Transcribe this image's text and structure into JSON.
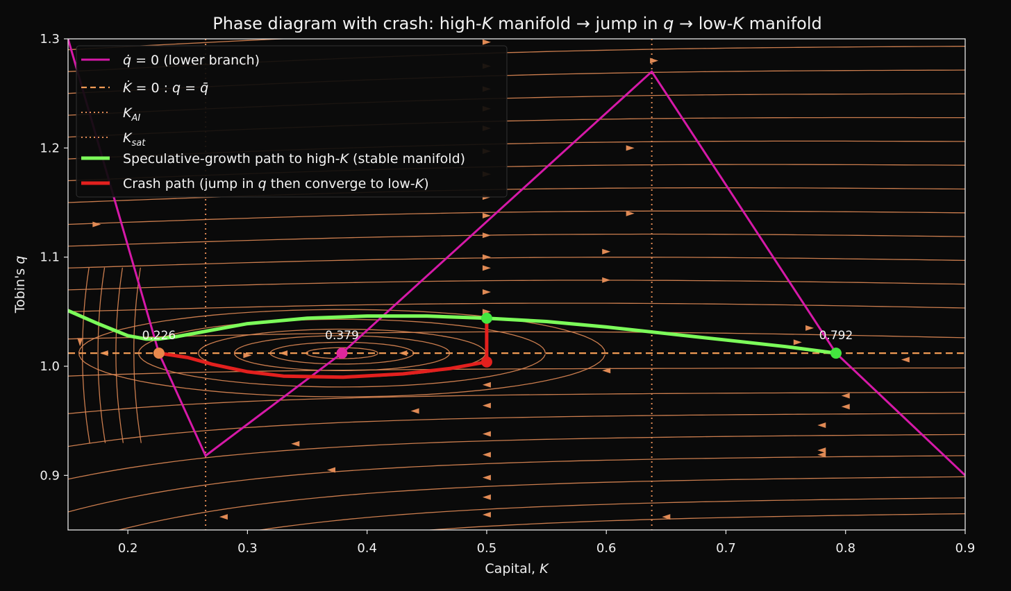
{
  "chart_data": {
    "type": "line",
    "title": {
      "prefix": "Phase diagram with crash: high-",
      "k1": "K",
      "mid1": " manifold ",
      "arrow1": "→",
      "mid2": " jump in ",
      "qsym": "q",
      "arrow2": "→",
      "mid3": " low-",
      "k2": "K",
      "suffix": " manifold"
    },
    "xlabel": {
      "text": "Capital, ",
      "sym": "K"
    },
    "ylabel": {
      "text": "Tobin's ",
      "sym": "q"
    },
    "xlim": [
      0.15,
      0.9
    ],
    "ylim": [
      0.85,
      1.3
    ],
    "x_ticks": [
      {
        "v": 0.2,
        "label": "0.2"
      },
      {
        "v": 0.3,
        "label": "0.3"
      },
      {
        "v": 0.4,
        "label": "0.4"
      },
      {
        "v": 0.5,
        "label": "0.5"
      },
      {
        "v": 0.6,
        "label": "0.6"
      },
      {
        "v": 0.7,
        "label": "0.7"
      },
      {
        "v": 0.8,
        "label": "0.8"
      },
      {
        "v": 0.9,
        "label": "0.9"
      }
    ],
    "y_ticks": [
      {
        "v": 0.9,
        "label": "0.9"
      },
      {
        "v": 1.0,
        "label": "1.0"
      },
      {
        "v": 1.1,
        "label": "1.1"
      },
      {
        "v": 1.2,
        "label": "1.2"
      },
      {
        "v": 1.3,
        "label": "1.3"
      }
    ],
    "grid": false,
    "legend_position": "top-left",
    "colors": {
      "background": "#0a0a0a",
      "stream": "#e08a55",
      "qdot": "#d619a8",
      "kdot": "#f09a55",
      "ksat_line": "#e08a55",
      "green": "#7cfc5a",
      "red": "#e3201e",
      "green_dot": "#43e63f",
      "orange_dot": "#e8884c",
      "magenta_dot": "#e0279c"
    },
    "legend": [
      {
        "key": "qdot",
        "style": "solid-magenta",
        "parts": [
          [
            "q̇",
            "i"
          ],
          [
            " = 0 (lower branch)",
            "n"
          ]
        ]
      },
      {
        "key": "kdot",
        "style": "dashed-orange",
        "parts": [
          [
            "K̇",
            "i"
          ],
          [
            " = 0 : ",
            "n"
          ],
          [
            "q",
            "i"
          ],
          [
            " = ",
            "n"
          ],
          [
            "q̄",
            "i"
          ]
        ]
      },
      {
        "key": "kai",
        "style": "dotted-orange",
        "parts": [
          [
            "K",
            "i"
          ],
          [
            "AI",
            "sub"
          ]
        ]
      },
      {
        "key": "ksat",
        "style": "dotted-orange",
        "parts": [
          [
            "K",
            "i"
          ],
          [
            "sat",
            "sub"
          ]
        ]
      },
      {
        "key": "green",
        "style": "thick-green",
        "parts": [
          [
            "Speculative-growth path to high-",
            "n"
          ],
          [
            "K",
            "i"
          ],
          [
            " (stable manifold)",
            "n"
          ]
        ]
      },
      {
        "key": "red",
        "style": "thick-red",
        "parts": [
          [
            "Crash path (jump in ",
            "n"
          ],
          [
            "q",
            "i"
          ],
          [
            " then converge to low-",
            "n"
          ],
          [
            "K",
            "i"
          ],
          [
            ")",
            "n"
          ]
        ]
      }
    ],
    "series": {
      "qdot_zero": [
        [
          0.15,
          1.3
        ],
        [
          0.226,
          1.012
        ],
        [
          0.265,
          0.918
        ],
        [
          0.379,
          1.012
        ],
        [
          0.638,
          1.27
        ],
        [
          0.792,
          1.012
        ],
        [
          0.9,
          0.9
        ]
      ],
      "kdot_zero_q": 1.012,
      "k_ai": 0.265,
      "k_sat": 0.638,
      "green_path": [
        [
          0.15,
          1.051
        ],
        [
          0.175,
          1.039
        ],
        [
          0.2,
          1.028
        ],
        [
          0.215,
          1.025
        ],
        [
          0.226,
          1.025
        ],
        [
          0.24,
          1.027
        ],
        [
          0.26,
          1.031
        ],
        [
          0.3,
          1.039
        ],
        [
          0.35,
          1.044
        ],
        [
          0.4,
          1.046
        ],
        [
          0.45,
          1.046
        ],
        [
          0.5,
          1.044
        ],
        [
          0.55,
          1.041
        ],
        [
          0.6,
          1.036
        ],
        [
          0.65,
          1.03
        ],
        [
          0.7,
          1.024
        ],
        [
          0.75,
          1.018
        ],
        [
          0.792,
          1.012
        ]
      ],
      "crash_jump": [
        [
          0.5,
          1.044
        ],
        [
          0.5,
          1.004
        ]
      ],
      "red_path": [
        [
          0.5,
          1.004
        ],
        [
          0.47,
          0.998
        ],
        [
          0.43,
          0.993
        ],
        [
          0.38,
          0.99
        ],
        [
          0.33,
          0.991
        ],
        [
          0.3,
          0.995
        ],
        [
          0.27,
          1.002
        ],
        [
          0.25,
          1.008
        ],
        [
          0.226,
          1.012
        ]
      ]
    },
    "points": [
      {
        "x": 0.226,
        "y": 1.012,
        "color": "#e8884c",
        "label": "0.226"
      },
      {
        "x": 0.379,
        "y": 1.012,
        "color": "#e0279c",
        "label": "0.379"
      },
      {
        "x": 0.792,
        "y": 1.012,
        "color": "#43e63f",
        "label": "0.792"
      },
      {
        "x": 0.5,
        "y": 1.044,
        "color": "#43e63f",
        "label": ""
      },
      {
        "x": 0.5,
        "y": 1.004,
        "color": "#e3201e",
        "label": ""
      }
    ],
    "stream_field": {
      "equilibrium_k": [
        0.226,
        0.379,
        0.792
      ],
      "left_region_k": [
        0.15,
        0.31
      ],
      "center_region_k": [
        0.31,
        0.6
      ],
      "center": [
        0.379,
        1.012
      ],
      "rings_radii": [
        [
          0.03,
          0.005
        ],
        [
          0.06,
          0.01
        ],
        [
          0.09,
          0.016
        ],
        [
          0.12,
          0.022
        ],
        [
          0.17,
          0.031
        ],
        [
          0.22,
          0.04
        ]
      ],
      "upper_q": [
        1.025,
        1.05,
        1.07,
        1.09,
        1.11,
        1.13,
        1.15,
        1.17,
        1.19,
        1.21,
        1.23,
        1.25,
        1.27,
        1.29
      ],
      "lower_q": [
        0.998,
        0.975,
        0.955,
        0.935,
        0.915,
        0.895,
        0.875,
        0.86
      ],
      "arrow_points": [
        [
          0.174,
          1.13,
          1
        ],
        [
          0.5,
          1.297,
          1
        ],
        [
          0.5,
          1.275,
          1
        ],
        [
          0.5,
          1.254,
          1
        ],
        [
          0.5,
          1.236,
          1
        ],
        [
          0.5,
          1.218,
          1
        ],
        [
          0.5,
          1.197,
          1
        ],
        [
          0.5,
          1.176,
          1
        ],
        [
          0.5,
          1.155,
          1
        ],
        [
          0.5,
          1.138,
          1
        ],
        [
          0.5,
          1.12,
          1
        ],
        [
          0.5,
          1.1,
          1
        ],
        [
          0.5,
          1.09,
          1
        ],
        [
          0.5,
          1.068,
          1
        ],
        [
          0.6,
          1.105,
          1
        ],
        [
          0.6,
          1.079,
          1
        ],
        [
          0.62,
          1.2,
          1
        ],
        [
          0.62,
          1.14,
          1
        ],
        [
          0.64,
          1.28,
          1
        ],
        [
          0.5,
          1.05,
          1
        ],
        [
          0.77,
          1.035,
          1
        ],
        [
          0.76,
          1.022,
          1
        ],
        [
          0.6,
          0.996,
          -1
        ],
        [
          0.85,
          1.006,
          -1
        ],
        [
          0.8,
          0.973,
          -1
        ],
        [
          0.8,
          0.963,
          -1
        ],
        [
          0.5,
          0.983,
          -1
        ],
        [
          0.5,
          0.964,
          -1
        ],
        [
          0.5,
          0.938,
          -1
        ],
        [
          0.5,
          0.919,
          -1
        ],
        [
          0.5,
          0.898,
          -1
        ],
        [
          0.5,
          0.88,
          -1
        ],
        [
          0.5,
          0.864,
          -1
        ],
        [
          0.44,
          0.959,
          -1
        ],
        [
          0.34,
          0.929,
          -1
        ],
        [
          0.37,
          0.905,
          -1
        ],
        [
          0.28,
          0.862,
          -1
        ],
        [
          0.78,
          0.946,
          -1
        ],
        [
          0.78,
          0.923,
          -1
        ],
        [
          0.78,
          0.919,
          -1
        ],
        [
          0.65,
          0.862,
          -1
        ],
        [
          0.43,
          1.012,
          -1
        ],
        [
          0.33,
          1.012,
          -1
        ],
        [
          0.3,
          1.01,
          1
        ],
        [
          0.18,
          1.012,
          -1
        ],
        [
          0.16,
          1.022,
          0
        ]
      ]
    }
  }
}
